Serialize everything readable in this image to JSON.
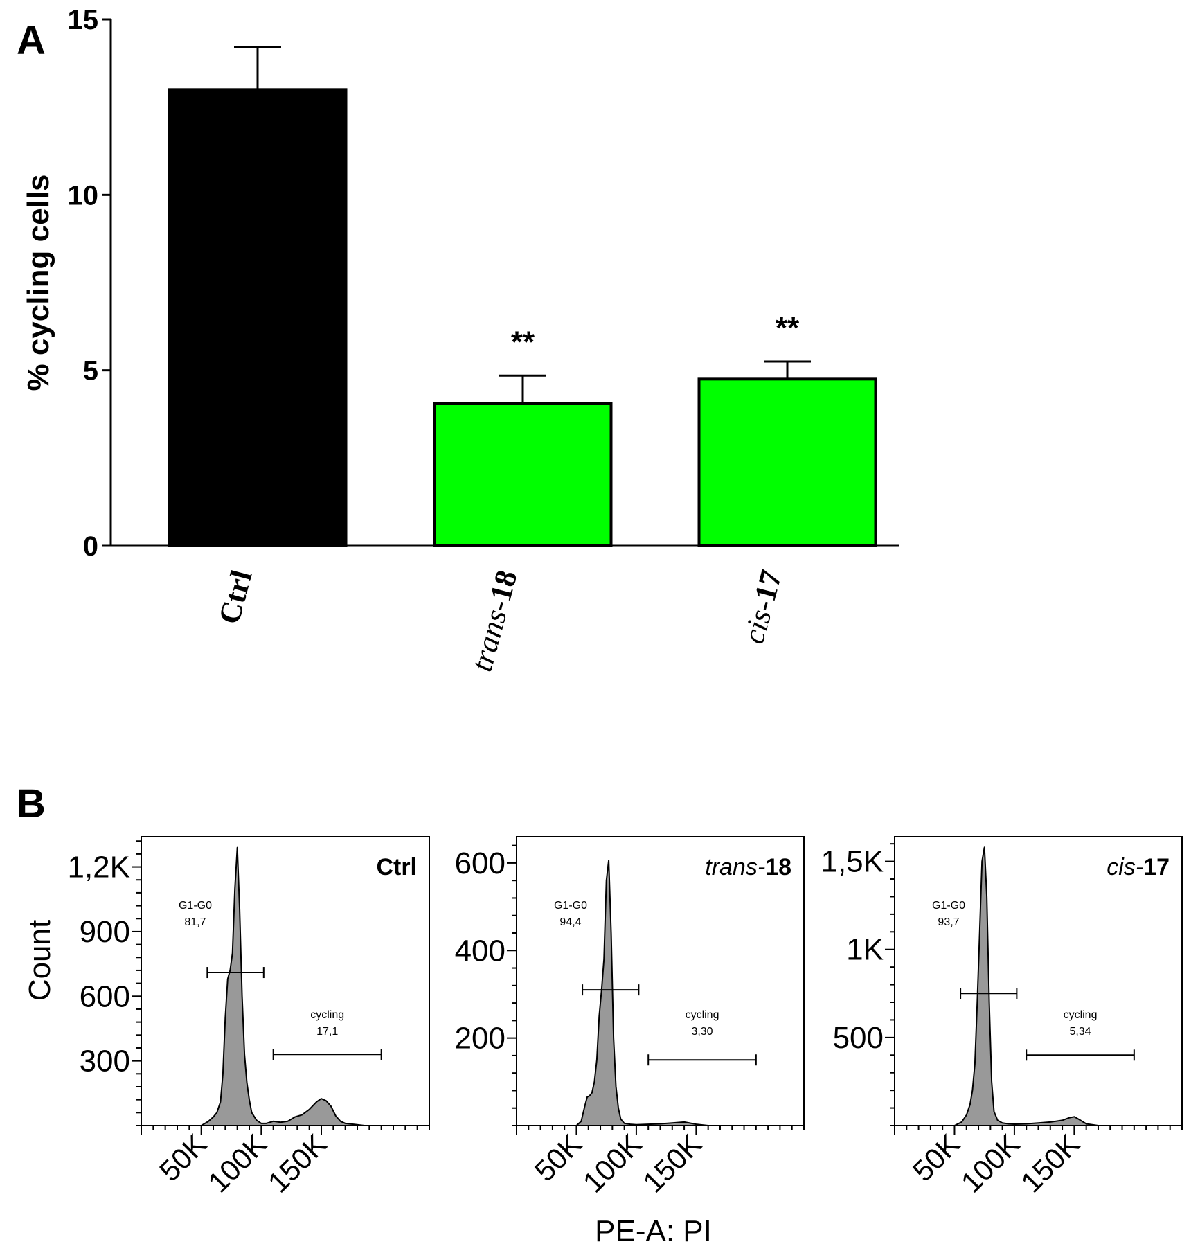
{
  "panel_a_label": "A",
  "panel_b_label": "B",
  "chart_data": [
    {
      "type": "bar",
      "panel": "A",
      "ylabel": "% cycling cells",
      "xlabel": "",
      "ylim": [
        0,
        15
      ],
      "yticks": [
        0,
        5,
        10,
        15
      ],
      "categories": [
        {
          "prefix": "Ctrl",
          "number": ""
        },
        {
          "prefix": "trans-",
          "number": "18"
        },
        {
          "prefix": "cis-",
          "number": "17"
        }
      ],
      "values": [
        13.0,
        4.05,
        4.75
      ],
      "errors": [
        1.2,
        0.8,
        0.5
      ],
      "significance": [
        "",
        "**",
        "**"
      ],
      "colors": [
        "#000000",
        "#00ff00",
        "#00ff00"
      ],
      "grid": false
    },
    {
      "type": "area",
      "panel": "B",
      "title_prefix": "",
      "title_number": "Ctrl",
      "ylabel": "Count",
      "xlabel": "",
      "xlim": [
        0,
        240000
      ],
      "ylim": [
        0,
        1340
      ],
      "yticks": [
        {
          "v": 300,
          "t": "300"
        },
        {
          "v": 600,
          "t": "600"
        },
        {
          "v": 900,
          "t": "900"
        },
        {
          "v": 1200,
          "t": "1,2K"
        }
      ],
      "xticks": [
        {
          "v": 50000,
          "t": "50K"
        },
        {
          "v": 100000,
          "t": "100K"
        },
        {
          "v": 150000,
          "t": "150K"
        }
      ],
      "x": [
        50000,
        56000,
        60000,
        63000,
        66000,
        68000,
        70000,
        72000,
        74000,
        76000,
        78000,
        80000,
        82000,
        84000,
        86000,
        88000,
        90000,
        92000,
        96000,
        100000,
        104000,
        110000,
        116000,
        122000,
        128000,
        134000,
        140000,
        146000,
        150000,
        154000,
        158000,
        162000,
        166000,
        170000,
        178000,
        186000,
        196000
      ],
      "y": [
        0,
        20,
        40,
        60,
        110,
        240,
        500,
        680,
        720,
        800,
        1100,
        1290,
        1000,
        600,
        330,
        200,
        120,
        60,
        25,
        10,
        10,
        20,
        15,
        20,
        40,
        50,
        75,
        110,
        125,
        115,
        90,
        45,
        20,
        10,
        5,
        0,
        0
      ],
      "gates": [
        {
          "name": "G1-G0",
          "value": "81,7",
          "x1": 55000,
          "x2": 102000,
          "y": 710
        },
        {
          "name": "cycling",
          "value": "17,1",
          "x1": 110000,
          "x2": 200000,
          "y": 330
        }
      ],
      "color": "#999999"
    },
    {
      "type": "area",
      "panel": "B",
      "title_prefix": "trans-",
      "title_number": "18",
      "ylabel": "",
      "xlabel": "PE-A: PI",
      "xlim": [
        0,
        240000
      ],
      "ylim": [
        0,
        660
      ],
      "yticks": [
        {
          "v": 200,
          "t": "200"
        },
        {
          "v": 400,
          "t": "400"
        },
        {
          "v": 600,
          "t": "600"
        }
      ],
      "xticks": [
        {
          "v": 50000,
          "t": "50K"
        },
        {
          "v": 100000,
          "t": "100K"
        },
        {
          "v": 150000,
          "t": "150K"
        }
      ],
      "x": [
        50000,
        54000,
        57000,
        59000,
        61000,
        63000,
        65000,
        67000,
        69000,
        71000,
        73000,
        75000,
        77000,
        79000,
        81000,
        83000,
        85000,
        87000,
        90000,
        95000,
        100000,
        110000,
        120000,
        130000,
        140000,
        150000,
        160000
      ],
      "y": [
        0,
        10,
        45,
        65,
        68,
        75,
        100,
        150,
        250,
        310,
        380,
        560,
        606,
        440,
        200,
        90,
        40,
        15,
        5,
        3,
        2,
        3,
        4,
        6,
        8,
        3,
        0
      ],
      "gates": [
        {
          "name": "G1-G0",
          "value": "94,4",
          "x1": 55000,
          "x2": 102000,
          "y": 310
        },
        {
          "name": "cycling",
          "value": "3,30",
          "x1": 110000,
          "x2": 200000,
          "y": 150
        }
      ],
      "color": "#999999"
    },
    {
      "type": "area",
      "panel": "B",
      "title_prefix": "cis-",
      "title_number": "17",
      "ylabel": "",
      "xlabel": "",
      "xlim": [
        0,
        240000
      ],
      "ylim": [
        0,
        1640
      ],
      "yticks": [
        {
          "v": 500,
          "t": "500"
        },
        {
          "v": 1000,
          "t": "1K"
        },
        {
          "v": 1500,
          "t": "1,5K"
        }
      ],
      "xticks": [
        {
          "v": 50000,
          "t": "50K"
        },
        {
          "v": 100000,
          "t": "100K"
        },
        {
          "v": 150000,
          "t": "150K"
        }
      ],
      "x": [
        50000,
        56000,
        60000,
        63000,
        65000,
        67000,
        69000,
        71000,
        73000,
        75000,
        77000,
        79000,
        81000,
        83000,
        86000,
        90000,
        95000,
        100000,
        110000,
        120000,
        130000,
        140000,
        146000,
        150000,
        154000,
        160000,
        170000
      ],
      "y": [
        0,
        20,
        60,
        120,
        200,
        350,
        700,
        1100,
        1500,
        1580,
        1300,
        700,
        250,
        80,
        30,
        15,
        10,
        8,
        10,
        15,
        20,
        30,
        45,
        50,
        35,
        10,
        0
      ],
      "gates": [
        {
          "name": "G1-G0",
          "value": "93,7",
          "x1": 55000,
          "x2": 102000,
          "y": 750
        },
        {
          "name": "cycling",
          "value": "5,34",
          "x1": 110000,
          "x2": 200000,
          "y": 400
        }
      ],
      "color": "#999999"
    }
  ]
}
